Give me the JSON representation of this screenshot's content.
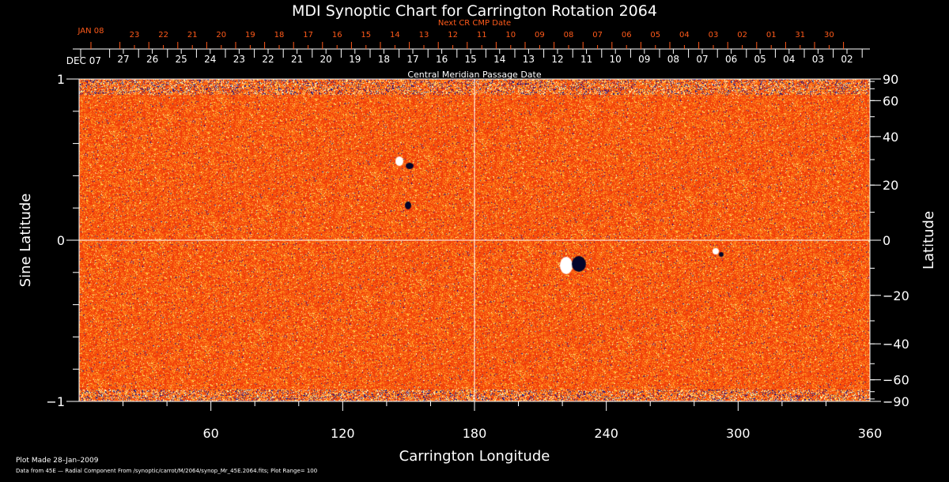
{
  "chart_data": {
    "type": "heatmap",
    "title": "MDI Synoptic Chart for Carrington Rotation 2064",
    "xlabel": "Carrington Longitude",
    "ylabel_left": "Sine Latitude",
    "ylabel_right": "Latitude",
    "xlim": [
      0,
      360
    ],
    "ylim": [
      -1,
      1
    ],
    "x_ticks": [
      60,
      120,
      180,
      240,
      300,
      360
    ],
    "y_ticks_left": [
      1,
      0,
      -1
    ],
    "y_tick_labels_left": [
      "1",
      "0",
      "−1"
    ],
    "y_ticks_right": [
      90,
      60,
      40,
      20,
      0,
      -20,
      -40,
      -60,
      -90
    ],
    "y_tick_labels_right": [
      "90",
      "60",
      "40",
      "20",
      "0",
      "−20",
      "−40",
      "−60",
      "−90"
    ],
    "top_axis": {
      "label": "Central Meridian Passage Date",
      "start_label": "DEC 07",
      "labels": [
        "27",
        "26",
        "25",
        "24",
        "23",
        "22",
        "21",
        "20",
        "19",
        "18",
        "17",
        "16",
        "15",
        "14",
        "13",
        "12",
        "11",
        "10",
        "09",
        "08",
        "07",
        "06",
        "05",
        "04",
        "03",
        "02"
      ]
    },
    "next_cr_axis": {
      "label": "Next CR CMP Date",
      "start_label": "JAN 08",
      "labels": [
        "23",
        "22",
        "21",
        "20",
        "19",
        "18",
        "17",
        "16",
        "15",
        "14",
        "13",
        "12",
        "11",
        "10",
        "09",
        "08",
        "07",
        "06",
        "05",
        "04",
        "03",
        "02",
        "01",
        "31",
        "30"
      ]
    },
    "grid": "crosshair at 180 longitude and 0 latitude",
    "colors": {
      "field_background": "#ff4a00",
      "positive": "#ffffff",
      "negative": "#0a0a80",
      "next_cr_axis": "#ff5a1a",
      "axes": "#ffffff"
    }
  },
  "footer": {
    "plot_made": "Plot Made 28–Jan–2009",
    "data_source": "Data from 45E — Radial Component From /synoptic/carrot/M/2064/synop_Mr_45E.2064.fits; Plot Range=  100"
  }
}
